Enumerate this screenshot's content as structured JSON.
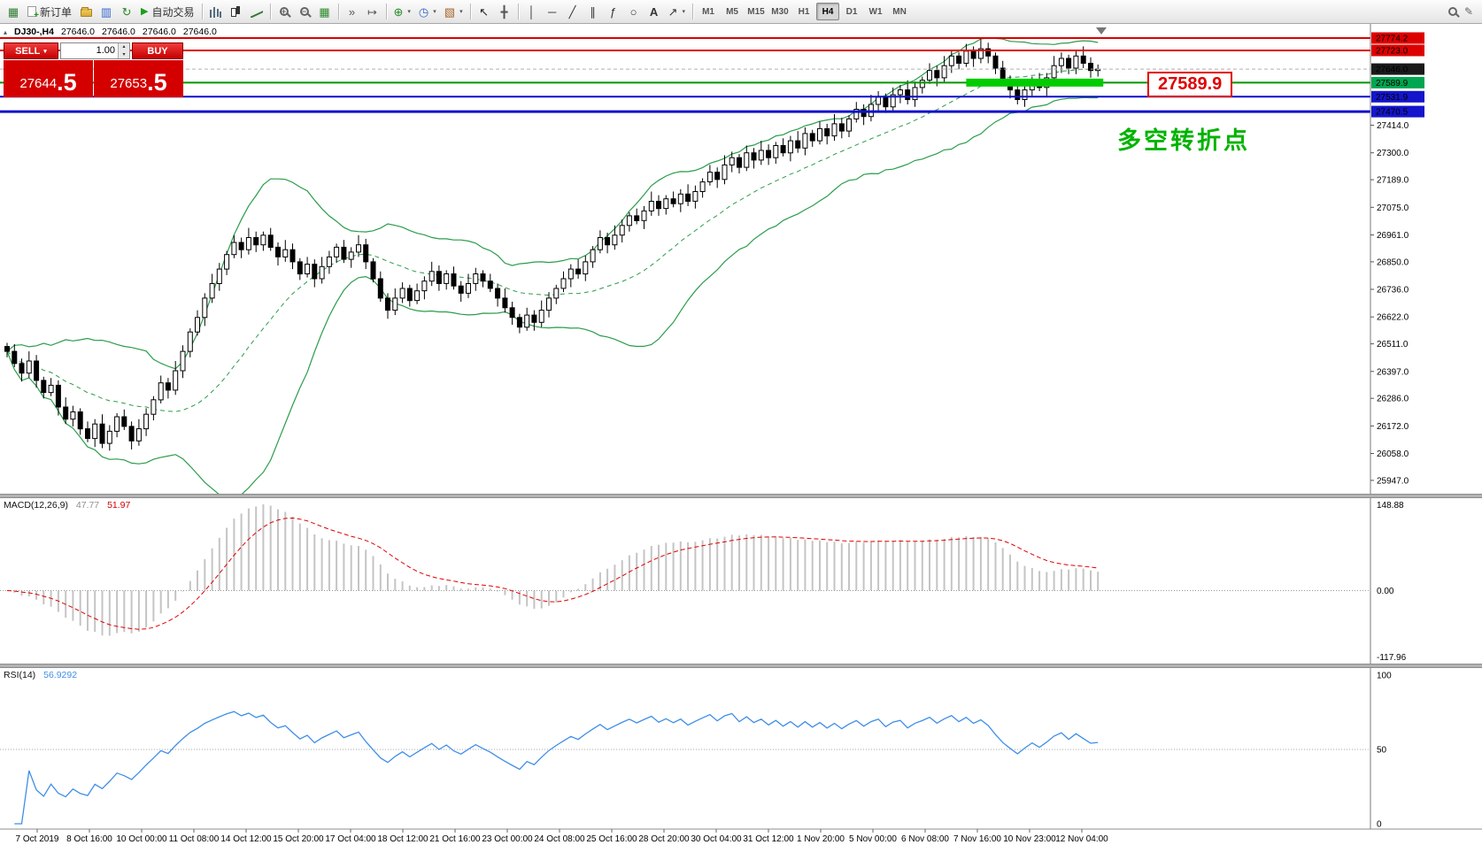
{
  "toolbar": {
    "new_order_label": "新订单",
    "autotrading_label": "自动交易",
    "timeframes": [
      "M1",
      "M5",
      "M15",
      "M30",
      "H1",
      "H4",
      "D1",
      "W1",
      "MN"
    ],
    "active_timeframe": "H4"
  },
  "symbol_bar": {
    "symbol": "DJ30-,H4",
    "open": "27646.0",
    "high": "27646.0",
    "low": "27646.0",
    "close": "27646.0"
  },
  "trade_panel": {
    "sell_label": "SELL",
    "buy_label": "BUY",
    "volume": "1.00",
    "sell_price_main": "27644",
    "sell_price_pips": ".5",
    "buy_price_main": "27653",
    "buy_price_pips": ".5"
  },
  "annotations": {
    "level_label": "27589.9",
    "turning_point": "多空转折点"
  },
  "chart_data": {
    "type": "candlestick",
    "symbol": "DJ30-",
    "timeframe": "H4",
    "price_axis": {
      "tags": [
        {
          "label": "27774.2",
          "price": 27774.2,
          "bg": "#dd0000"
        },
        {
          "label": "27723.0",
          "price": 27723.0,
          "bg": "#dd0000"
        },
        {
          "label": "27646.0",
          "price": 27646.0,
          "bg": "#1a1a1a"
        },
        {
          "label": "27589.9",
          "price": 27589.9,
          "bg": "#00a651"
        },
        {
          "label": "27531.9",
          "price": 27531.9,
          "bg": "#1515cc"
        },
        {
          "label": "27470.5",
          "price": 27470.5,
          "bg": "#1515cc"
        }
      ],
      "gridline_prices": [
        27414.0,
        27300.0,
        27189.0,
        27075.0,
        26961.0,
        26850.0,
        26736.0,
        26622.0,
        26511.0,
        26397.0,
        26286.0,
        26172.0,
        26058.0,
        25947.0
      ]
    },
    "levels": [
      {
        "name": "resistance-line-upper",
        "price": 27774.2,
        "color": "#dd0000",
        "width": 2,
        "dash": ""
      },
      {
        "name": "resistance-line-lower",
        "price": 27723.0,
        "color": "#dd0000",
        "width": 2,
        "dash": ""
      },
      {
        "name": "bid-price-line",
        "price": 27646.0,
        "color": "#b0b0b0",
        "width": 1,
        "dash": "4,3"
      },
      {
        "name": "pivot-level-line",
        "price": 27589.9,
        "color": "#009900",
        "width": 2,
        "dash": ""
      },
      {
        "name": "support-line-upper",
        "price": 27531.9,
        "color": "#0f0fcc",
        "width": 2,
        "dash": ""
      },
      {
        "name": "support-line-lower",
        "price": 27470.5,
        "color": "#0f0fcc",
        "width": 3,
        "dash": ""
      }
    ],
    "highlight_segment": {
      "price": 27589.9,
      "start_index": 131,
      "end_index": 149,
      "color": "#00cc00",
      "width": 9
    },
    "bollinger": {
      "period": 20,
      "deviation": 2,
      "color": "#2a9d4a"
    },
    "macd": {
      "label": "MACD(12,26,9)",
      "value_main": "47.77",
      "value_signal": "51.97",
      "axis_labels": [
        "148.88",
        "0.00",
        "-117.96"
      ],
      "histogram_color": "#c4c4c4",
      "signal_color": "#e00000"
    },
    "rsi": {
      "label": "RSI(14)",
      "value": "56.9292",
      "axis_labels": [
        "100",
        "50",
        "0"
      ],
      "color": "#3f8ee8"
    },
    "time_axis": [
      "7 Oct 2019",
      "8 Oct 16:00",
      "10 Oct 00:00",
      "11 Oct 08:00",
      "14 Oct 12:00",
      "15 Oct 20:00",
      "17 Oct 04:00",
      "18 Oct 12:00",
      "21 Oct 16:00",
      "23 Oct 00:00",
      "24 Oct 08:00",
      "25 Oct 16:00",
      "28 Oct 20:00",
      "30 Oct 04:00",
      "31 Oct 12:00",
      "1 Nov 20:00",
      "5 Nov 00:00",
      "6 Nov 08:00",
      "7 Nov 16:00",
      "10 Nov 23:00",
      "12 Nov 04:00"
    ],
    "candles": [
      [
        26500,
        26515,
        26455,
        26480
      ],
      [
        26480,
        26510,
        26415,
        26430
      ],
      [
        26430,
        26450,
        26355,
        26390
      ],
      [
        26390,
        26480,
        26370,
        26440
      ],
      [
        26440,
        26465,
        26330,
        26360
      ],
      [
        26360,
        26375,
        26285,
        26310
      ],
      [
        26310,
        26370,
        26295,
        26340
      ],
      [
        26340,
        26360,
        26215,
        26250
      ],
      [
        26250,
        26290,
        26180,
        26200
      ],
      [
        26200,
        26255,
        26170,
        26230
      ],
      [
        26230,
        26245,
        26135,
        26160
      ],
      [
        26160,
        26190,
        26105,
        26120
      ],
      [
        26120,
        26200,
        26085,
        26180
      ],
      [
        26180,
        26220,
        26080,
        26100
      ],
      [
        26100,
        26175,
        26070,
        26150
      ],
      [
        26150,
        26225,
        26125,
        26210
      ],
      [
        26210,
        26240,
        26155,
        26170
      ],
      [
        26170,
        26190,
        26075,
        26110
      ],
      [
        26110,
        26200,
        26090,
        26160
      ],
      [
        26160,
        26245,
        26130,
        26220
      ],
      [
        26220,
        26295,
        26195,
        26280
      ],
      [
        26280,
        26380,
        26265,
        26350
      ],
      [
        26350,
        26370,
        26285,
        26320
      ],
      [
        26320,
        26440,
        26300,
        26400
      ],
      [
        26400,
        26505,
        26370,
        26480
      ],
      [
        26480,
        26575,
        26455,
        26560
      ],
      [
        26560,
        26650,
        26545,
        26620
      ],
      [
        26620,
        26720,
        26585,
        26700
      ],
      [
        26700,
        26800,
        26680,
        26760
      ],
      [
        26760,
        26845,
        26730,
        26820
      ],
      [
        26820,
        26895,
        26795,
        26880
      ],
      [
        26880,
        26960,
        26865,
        26930
      ],
      [
        26930,
        26950,
        26865,
        26900
      ],
      [
        26900,
        26990,
        26880,
        26950
      ],
      [
        26950,
        26975,
        26890,
        26920
      ],
      [
        26920,
        26975,
        26895,
        26960
      ],
      [
        26960,
        26990,
        26895,
        26910
      ],
      [
        26910,
        26930,
        26835,
        26870
      ],
      [
        26870,
        26940,
        26850,
        26900
      ],
      [
        26900,
        26925,
        26820,
        26850
      ],
      [
        26850,
        26865,
        26775,
        26800
      ],
      [
        26800,
        26870,
        26785,
        26840
      ],
      [
        26840,
        26860,
        26745,
        26780
      ],
      [
        26780,
        26870,
        26760,
        26830
      ],
      [
        26830,
        26895,
        26800,
        26870
      ],
      [
        26870,
        26925,
        26845,
        26910
      ],
      [
        26910,
        26940,
        26845,
        26860
      ],
      [
        26860,
        26910,
        26825,
        26890
      ],
      [
        26890,
        26960,
        26870,
        26920
      ],
      [
        26920,
        26945,
        26820,
        26850
      ],
      [
        26850,
        26865,
        26765,
        26780
      ],
      [
        26780,
        26810,
        26685,
        26700
      ],
      [
        26700,
        26720,
        26615,
        26650
      ],
      [
        26650,
        26740,
        26630,
        26700
      ],
      [
        26700,
        26765,
        26680,
        26740
      ],
      [
        26740,
        26755,
        26665,
        26690
      ],
      [
        26690,
        26760,
        26675,
        26730
      ],
      [
        26730,
        26790,
        26695,
        26770
      ],
      [
        26770,
        26850,
        26750,
        26810
      ],
      [
        26810,
        26835,
        26730,
        26760
      ],
      [
        26760,
        26815,
        26735,
        26800
      ],
      [
        26800,
        26830,
        26735,
        26750
      ],
      [
        26750,
        26770,
        26685,
        26720
      ],
      [
        26720,
        26800,
        26700,
        26760
      ],
      [
        26760,
        26825,
        26730,
        26800
      ],
      [
        26800,
        26815,
        26745,
        26770
      ],
      [
        26770,
        26800,
        26725,
        26740
      ],
      [
        26740,
        26760,
        26665,
        26700
      ],
      [
        26700,
        26740,
        26640,
        26660
      ],
      [
        26660,
        26685,
        26590,
        26620
      ],
      [
        26620,
        26635,
        26555,
        26580
      ],
      [
        26580,
        26660,
        26565,
        26630
      ],
      [
        26630,
        26650,
        26565,
        26600
      ],
      [
        26600,
        26690,
        26580,
        26650
      ],
      [
        26650,
        26725,
        26620,
        26700
      ],
      [
        26700,
        26755,
        26675,
        26740
      ],
      [
        26740,
        26810,
        26725,
        26780
      ],
      [
        26780,
        26840,
        26745,
        26820
      ],
      [
        26820,
        26860,
        26780,
        26800
      ],
      [
        26800,
        26875,
        26770,
        26850
      ],
      [
        26850,
        26915,
        26825,
        26900
      ],
      [
        26900,
        26980,
        26885,
        26950
      ],
      [
        26950,
        26970,
        26885,
        26920
      ],
      [
        26920,
        27000,
        26900,
        26960
      ],
      [
        26960,
        27025,
        26930,
        27000
      ],
      [
        27000,
        27055,
        26975,
        27040
      ],
      [
        27040,
        27070,
        27005,
        27020
      ],
      [
        27020,
        27080,
        26985,
        27060
      ],
      [
        27060,
        27140,
        27040,
        27100
      ],
      [
        27100,
        27125,
        27040,
        27070
      ],
      [
        27070,
        27125,
        27045,
        27110
      ],
      [
        27110,
        27140,
        27075,
        27090
      ],
      [
        27090,
        27150,
        27055,
        27130
      ],
      [
        27130,
        27170,
        27080,
        27100
      ],
      [
        27100,
        27165,
        27070,
        27140
      ],
      [
        27140,
        27195,
        27115,
        27180
      ],
      [
        27180,
        27250,
        27165,
        27220
      ],
      [
        27220,
        27240,
        27155,
        27190
      ],
      [
        27190,
        27290,
        27170,
        27250
      ],
      [
        27250,
        27305,
        27220,
        27280
      ],
      [
        27280,
        27295,
        27215,
        27240
      ],
      [
        27240,
        27330,
        27225,
        27300
      ],
      [
        27300,
        27320,
        27235,
        27270
      ],
      [
        27270,
        27350,
        27250,
        27310
      ],
      [
        27310,
        27335,
        27250,
        27280
      ],
      [
        27280,
        27345,
        27255,
        27330
      ],
      [
        27330,
        27360,
        27285,
        27300
      ],
      [
        27300,
        27370,
        27265,
        27350
      ],
      [
        27350,
        27390,
        27300,
        27320
      ],
      [
        27320,
        27405,
        27290,
        27380
      ],
      [
        27380,
        27395,
        27325,
        27350
      ],
      [
        27350,
        27430,
        27335,
        27400
      ],
      [
        27400,
        27420,
        27335,
        27370
      ],
      [
        27370,
        27460,
        27350,
        27420
      ],
      [
        27420,
        27445,
        27360,
        27390
      ],
      [
        27390,
        27455,
        27365,
        27440
      ],
      [
        27440,
        27510,
        27425,
        27480
      ],
      [
        27480,
        27500,
        27415,
        27450
      ],
      [
        27450,
        27540,
        27430,
        27500
      ],
      [
        27500,
        27555,
        27470,
        27530
      ],
      [
        27530,
        27545,
        27465,
        27490
      ],
      [
        27490,
        27570,
        27475,
        27540
      ],
      [
        27540,
        27580,
        27505,
        27560
      ],
      [
        27560,
        27600,
        27500,
        27520
      ],
      [
        27520,
        27595,
        27490,
        27570
      ],
      [
        27570,
        27615,
        27545,
        27600
      ],
      [
        27600,
        27670,
        27585,
        27640
      ],
      [
        27640,
        27660,
        27575,
        27610
      ],
      [
        27610,
        27700,
        27590,
        27660
      ],
      [
        27660,
        27725,
        27630,
        27700
      ],
      [
        27700,
        27715,
        27645,
        27670
      ],
      [
        27670,
        27750,
        27655,
        27720
      ],
      [
        27720,
        27740,
        27655,
        27690
      ],
      [
        27690,
        27770,
        27670,
        27730
      ],
      [
        27730,
        27755,
        27670,
        27700
      ],
      [
        27700,
        27715,
        27625,
        27650
      ],
      [
        27650,
        27680,
        27585,
        27600
      ],
      [
        27600,
        27620,
        27525,
        27560
      ],
      [
        27560,
        27580,
        27500,
        27520
      ],
      [
        27520,
        27585,
        27490,
        27560
      ],
      [
        27560,
        27615,
        27535,
        27600
      ],
      [
        27600,
        27630,
        27555,
        27570
      ],
      [
        27570,
        27630,
        27535,
        27610
      ],
      [
        27610,
        27700,
        27590,
        27660
      ],
      [
        27660,
        27715,
        27630,
        27690
      ],
      [
        27690,
        27705,
        27625,
        27650
      ],
      [
        27650,
        27720,
        27625,
        27700
      ],
      [
        27700,
        27740,
        27650,
        27670
      ],
      [
        27670,
        27695,
        27610,
        27640
      ],
      [
        27640,
        27665,
        27615,
        27646
      ]
    ]
  }
}
